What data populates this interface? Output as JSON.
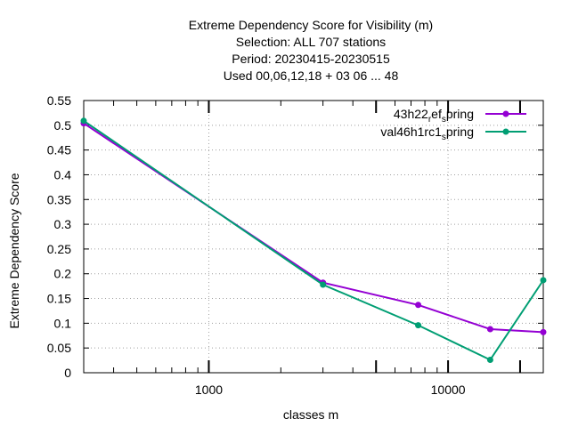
{
  "chart_data": {
    "type": "line",
    "title_lines": [
      "Extreme Dependency Score  for Visibility (m)",
      "Selection: ALL     707 stations",
      "Period: 20230415-20230515",
      "Used  00,06,12,18  + 03 06 ... 48"
    ],
    "xlabel": "classes m",
    "ylabel": "Extreme Dependency Score",
    "x_scale": "log",
    "xlim": [
      300,
      25000
    ],
    "ylim": [
      0,
      0.55
    ],
    "x_ticks": [
      1000,
      10000
    ],
    "x_tick_labels": [
      "1000",
      "10000"
    ],
    "y_ticks": [
      0,
      0.05,
      0.1,
      0.15,
      0.2,
      0.25,
      0.3,
      0.35,
      0.4,
      0.45,
      0.5,
      0.55
    ],
    "y_tick_labels": [
      "0",
      "0.05",
      "0.1",
      "0.15",
      "0.2",
      "0.25",
      "0.3",
      "0.35",
      "0.4",
      "0.45",
      "0.5",
      "0.55"
    ],
    "grid": true,
    "legend_position": "top-right",
    "series": [
      {
        "name": "43h22_ref_spring",
        "legend": {
          "main": "43h22",
          "sub1": "r",
          "mid": "ef",
          "sub2": "s",
          "tail": "pring"
        },
        "color": "#9400d3",
        "x": [
          300,
          3000,
          7500,
          15000,
          25000
        ],
        "y": [
          0.504,
          0.182,
          0.137,
          0.088,
          0.082
        ]
      },
      {
        "name": "val46h1rc1_spring",
        "legend": {
          "main": "val46h1rc1",
          "sub1": "",
          "mid": "",
          "sub2": "s",
          "tail": "pring"
        },
        "color": "#009e73",
        "x": [
          300,
          3000,
          7500,
          15000,
          25000
        ],
        "y": [
          0.509,
          0.178,
          0.096,
          0.026,
          0.187
        ]
      }
    ]
  }
}
